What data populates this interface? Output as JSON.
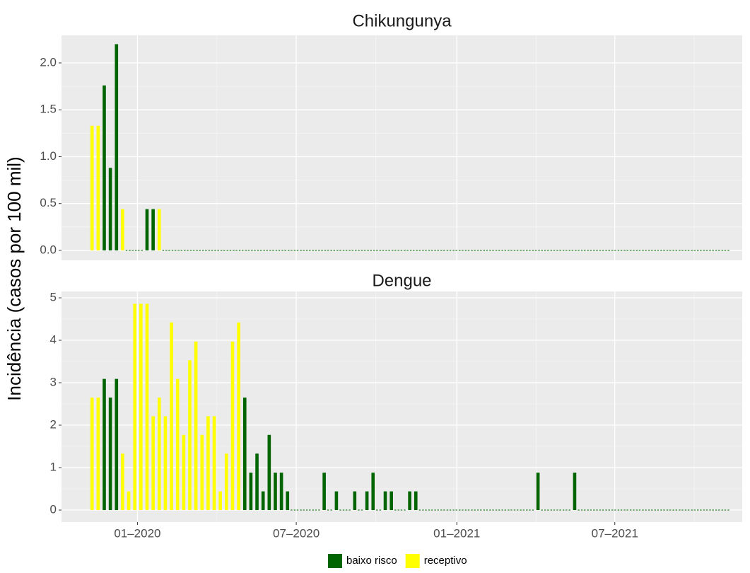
{
  "chart_data": {
    "type": "bar",
    "y_label": "Incidência (casos por 100 mil)",
    "x": [
      "2019-11-10",
      "2019-11-17",
      "2019-11-24",
      "2019-12-01",
      "2019-12-08",
      "2019-12-15",
      "2019-12-22",
      "2019-12-29",
      "2020-01-05",
      "2020-01-12",
      "2020-01-19",
      "2020-01-26",
      "2020-02-02",
      "2020-02-09",
      "2020-02-16",
      "2020-02-23",
      "2020-03-01",
      "2020-03-08",
      "2020-03-15",
      "2020-03-22",
      "2020-03-29",
      "2020-04-05",
      "2020-04-12",
      "2020-04-19",
      "2020-04-26",
      "2020-05-03",
      "2020-05-10",
      "2020-05-17",
      "2020-05-24",
      "2020-05-31",
      "2020-06-07",
      "2020-06-14",
      "2020-06-21",
      "2020-06-28",
      "2020-07-05",
      "2020-07-12",
      "2020-07-19",
      "2020-07-26",
      "2020-08-02",
      "2020-08-09",
      "2020-08-16",
      "2020-08-23",
      "2020-08-30",
      "2020-09-06",
      "2020-09-13",
      "2020-09-20",
      "2020-09-27",
      "2020-10-04",
      "2020-10-11",
      "2020-10-18",
      "2020-10-25",
      "2020-11-01",
      "2020-11-08",
      "2020-11-15",
      "2020-11-22",
      "2020-11-29",
      "2020-12-06",
      "2020-12-13",
      "2020-12-20",
      "2020-12-27",
      "2021-01-03",
      "2021-01-10",
      "2021-01-17",
      "2021-01-24",
      "2021-01-31",
      "2021-02-07",
      "2021-02-14",
      "2021-02-21",
      "2021-02-28",
      "2021-03-07",
      "2021-03-14",
      "2021-03-21",
      "2021-03-28",
      "2021-04-04",
      "2021-04-11",
      "2021-04-18",
      "2021-04-25",
      "2021-05-02",
      "2021-05-09",
      "2021-05-16",
      "2021-05-23",
      "2021-05-30",
      "2021-06-06",
      "2021-06-13",
      "2021-06-20",
      "2021-06-27",
      "2021-07-04",
      "2021-07-11",
      "2021-07-18",
      "2021-07-25",
      "2021-08-01",
      "2021-08-08",
      "2021-08-15",
      "2021-08-22",
      "2021-08-29",
      "2021-09-05",
      "2021-09-12",
      "2021-09-19",
      "2021-09-26",
      "2021-10-03",
      "2021-10-10",
      "2021-10-17",
      "2021-10-24",
      "2021-10-31",
      "2021-11-07"
    ],
    "xlim": [
      "2019-10-06",
      "2021-11-24"
    ],
    "xticks": [
      {
        "value": "2020-01",
        "label": "01–2020"
      },
      {
        "value": "2020-07",
        "label": "07–2020"
      },
      {
        "value": "2021-01",
        "label": "01–2021"
      },
      {
        "value": "2021-07",
        "label": "07–2021"
      }
    ],
    "grid": true,
    "legend": "bottom",
    "facets": [
      {
        "title": "Chikungunya",
        "ylim": [
          -0.106,
          2.294
        ],
        "yticks": [
          {
            "value": 0,
            "label": "0.0"
          },
          0.5,
          {
            "value": 1,
            "label": "1.0"
          },
          1.5,
          {
            "value": 2,
            "label": "2.0"
          }
        ],
        "series": [
          {
            "name": "baixo risco",
            "color": "#006400",
            "values": [
              null,
              null,
              1.76,
              0.88,
              2.2,
              null,
              0,
              0,
              0,
              0.44,
              0.44,
              null,
              0,
              0,
              0,
              0,
              0,
              0,
              0,
              0,
              0,
              0,
              0,
              0,
              0,
              0,
              0,
              0,
              0,
              0,
              0,
              0,
              0,
              0,
              0,
              0,
              0,
              0,
              0,
              0,
              0,
              0,
              0,
              0,
              0,
              0,
              0,
              0,
              0,
              0,
              0,
              0,
              0,
              0,
              0,
              0,
              0,
              0,
              0,
              0,
              0,
              0,
              0,
              0,
              0,
              0,
              0,
              0,
              0,
              0,
              0,
              0,
              0,
              0,
              0,
              0,
              0,
              0,
              0,
              0,
              0,
              0,
              0,
              0,
              0,
              0,
              0,
              0,
              0,
              0,
              0,
              0,
              0,
              0,
              0,
              0,
              0,
              0,
              0,
              0,
              0,
              0,
              0,
              0,
              0
            ]
          },
          {
            "name": "receptivo",
            "color": "#ffff00",
            "values": [
              1.33,
              1.33,
              null,
              null,
              null,
              0.44,
              null,
              null,
              null,
              null,
              null,
              0.44,
              null,
              null,
              null,
              null,
              null,
              null,
              null,
              null,
              null,
              null,
              null,
              null,
              null,
              null,
              null,
              null,
              null,
              null,
              null,
              null,
              null,
              null,
              null,
              null,
              null,
              null,
              null,
              null,
              null,
              null,
              null,
              null,
              null,
              null,
              null,
              null,
              null,
              null,
              null,
              null,
              null,
              null,
              null,
              null,
              null,
              null,
              null,
              null,
              null,
              null,
              null,
              null,
              null,
              null,
              null,
              null,
              null,
              null,
              null,
              null,
              null,
              null,
              null,
              null,
              null,
              null,
              null,
              null,
              null,
              null,
              null,
              null,
              null,
              null,
              null,
              null,
              null,
              null,
              null,
              null,
              null,
              null,
              null,
              null,
              null,
              null,
              null,
              null,
              null,
              null,
              null,
              null,
              null
            ]
          }
        ]
      },
      {
        "title": "Dengue",
        "ylim": [
          -0.283,
          5.15
        ],
        "yticks": [
          0,
          1,
          2,
          3,
          4,
          5
        ],
        "series": [
          {
            "name": "baixo risco",
            "color": "#006400",
            "values": [
              null,
              null,
              3.09,
              2.65,
              3.09,
              null,
              null,
              null,
              null,
              null,
              null,
              null,
              null,
              null,
              null,
              null,
              null,
              null,
              null,
              null,
              null,
              null,
              null,
              null,
              null,
              2.65,
              0.88,
              1.33,
              0.44,
              1.77,
              0.88,
              0.88,
              0.44,
              0,
              0,
              0,
              0,
              0,
              0.88,
              0,
              0.44,
              0,
              0,
              0.44,
              0,
              0.44,
              0.88,
              0,
              0.44,
              0.44,
              0,
              0,
              0.44,
              0.44,
              0,
              0,
              0,
              0,
              0,
              0,
              0,
              0,
              0,
              0,
              0,
              0,
              0,
              0,
              0,
              0,
              0,
              0,
              0,
              0.88,
              0,
              0,
              0,
              0,
              0,
              0.88,
              0,
              0,
              0,
              0,
              0,
              0,
              0,
              0,
              0,
              0,
              0,
              0,
              0,
              0,
              0,
              0,
              0,
              0,
              0,
              0,
              0,
              0,
              0,
              0,
              0
            ]
          },
          {
            "name": "receptivo",
            "color": "#ffff00",
            "values": [
              2.65,
              2.65,
              null,
              null,
              null,
              1.33,
              0.44,
              4.86,
              4.86,
              4.86,
              2.21,
              2.65,
              2.21,
              4.42,
              3.09,
              1.77,
              3.53,
              3.97,
              1.77,
              2.21,
              2.21,
              0.44,
              1.33,
              3.97,
              4.42,
              null,
              null,
              null,
              null,
              null,
              null,
              null,
              null,
              null,
              null,
              null,
              null,
              null,
              null,
              null,
              null,
              null,
              null,
              null,
              null,
              null,
              null,
              null,
              null,
              null,
              null,
              null,
              null,
              null,
              null,
              null,
              null,
              null,
              null,
              null,
              null,
              null,
              null,
              null,
              null,
              null,
              null,
              null,
              null,
              null,
              null,
              null,
              null,
              null,
              null,
              null,
              null,
              null,
              null,
              null,
              null,
              null,
              null,
              null,
              null,
              null,
              null,
              null,
              null,
              null,
              null,
              null,
              null,
              null,
              null,
              null,
              null,
              null,
              null,
              null,
              null,
              null,
              null,
              null,
              null
            ]
          }
        ]
      }
    ]
  }
}
